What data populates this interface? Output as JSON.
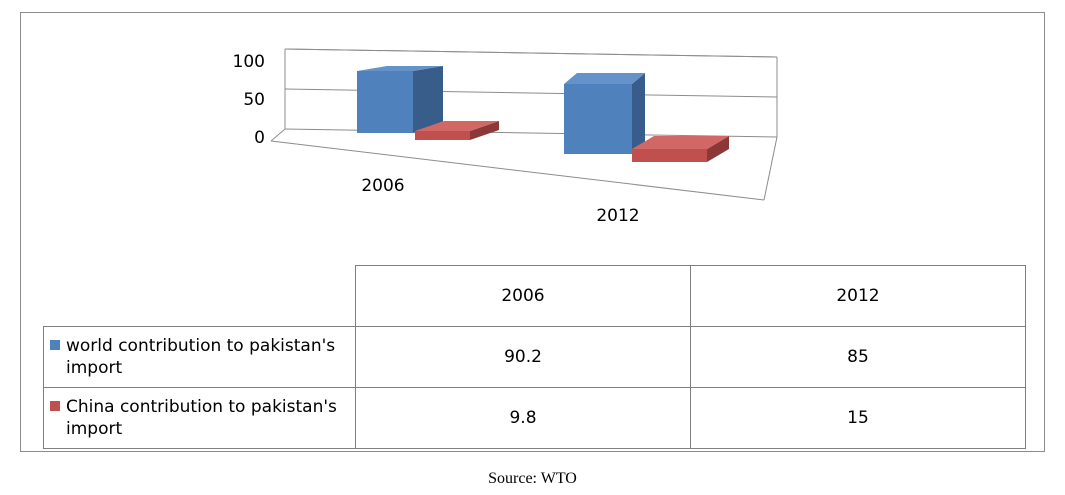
{
  "chart_data": {
    "type": "bar",
    "categories": [
      "2006",
      "2012"
    ],
    "series": [
      {
        "name": "world contribution to pakistan's import",
        "values": [
          90.2,
          85
        ],
        "color": "#4f81bd"
      },
      {
        "name": "China contribution to pakistan's import",
        "values": [
          9.8,
          15
        ],
        "color": "#c0504d"
      }
    ],
    "ylim": [
      0,
      100
    ],
    "yticks": [
      "0",
      "50",
      "100"
    ],
    "grid": true,
    "three_d": true,
    "legend": "data-table"
  },
  "table": {
    "header": [
      "2006",
      "2012"
    ],
    "rows": [
      {
        "label": "world contribution to pakistan's",
        "label_cont": "import",
        "values": [
          "90.2",
          "85"
        ]
      },
      {
        "label": "China contribution to pakistan's",
        "label_cont": "import",
        "values": [
          "9.8",
          "15"
        ]
      }
    ]
  },
  "source": "Source: WTO"
}
